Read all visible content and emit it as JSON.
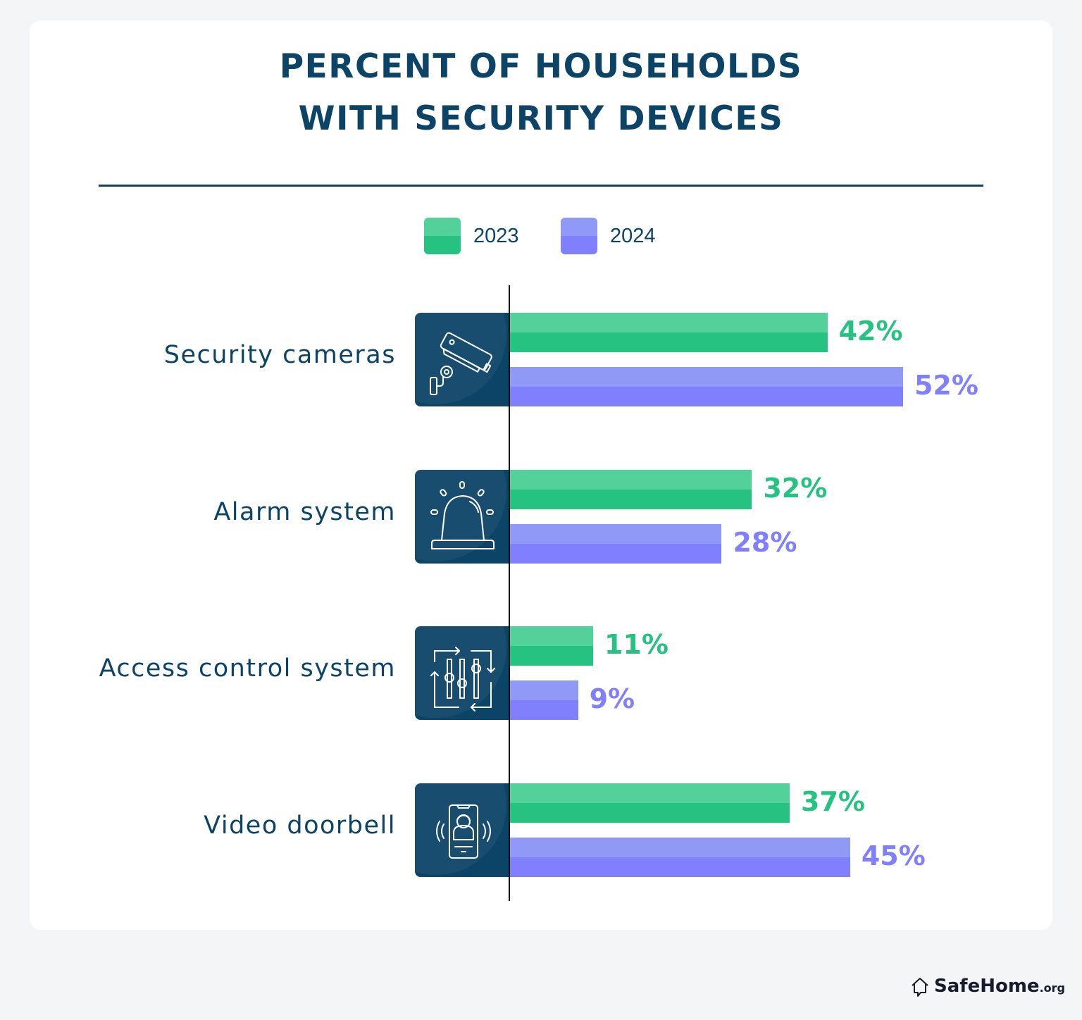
{
  "chart_data": {
    "type": "bar",
    "orientation": "horizontal",
    "title": "PERCENT OF HOUSEHOLDS WITH SECURITY DEVICES",
    "title_lines": [
      "PERCENT OF HOUSEHOLDS",
      "WITH SECURITY DEVICES"
    ],
    "xlabel": "",
    "ylabel": "",
    "xlim": [
      0,
      100
    ],
    "grid": false,
    "legend_position": "top-center",
    "categories": [
      "Security cameras",
      "Alarm system",
      "Access control system",
      "Video doorbell"
    ],
    "category_icons": [
      "security-camera-icon",
      "alarm-siren-icon",
      "access-control-sliders-icon",
      "video-doorbell-phone-icon"
    ],
    "series": [
      {
        "name": "2023",
        "color": "#26c281",
        "color_light": "#52d19b",
        "values": [
          42,
          32,
          11,
          37
        ]
      },
      {
        "name": "2024",
        "color": "#8080ff",
        "color_light": "#9199f7",
        "values": [
          52,
          28,
          9,
          45
        ]
      }
    ],
    "value_suffix": "%"
  },
  "legend": [
    {
      "label": "2023"
    },
    {
      "label": "2024"
    }
  ],
  "brand": {
    "name": "SafeHome",
    "tld": ".org",
    "icon": "house-chat-icon"
  }
}
